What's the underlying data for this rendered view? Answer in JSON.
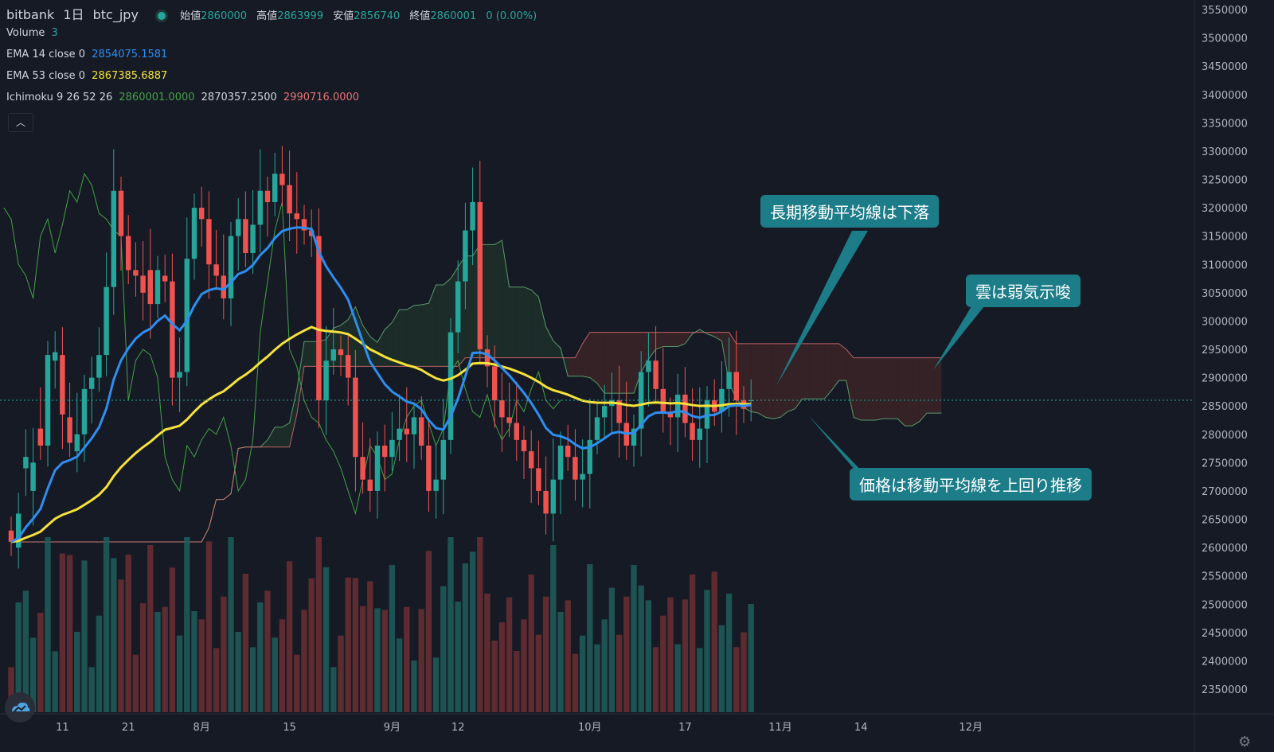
{
  "header": {
    "exchange": "bitbank",
    "interval": "1日",
    "symbol": "btc_jpy",
    "ohlc": [
      {
        "label": "始値",
        "value": "2860000"
      },
      {
        "label": "高値",
        "value": "2863999"
      },
      {
        "label": "安値",
        "value": "2856740"
      },
      {
        "label": "終値",
        "value": "2860001"
      }
    ],
    "change": "0 (0.00%)"
  },
  "indicators": {
    "volume": {
      "label": "Volume",
      "value": "3"
    },
    "ema14": {
      "label": "EMA 14 close 0",
      "value": "2854075.1581"
    },
    "ema53": {
      "label": "EMA 53 close 0",
      "value": "2867385.6887"
    },
    "ichimoku": {
      "label": "Ichimoku 9 26 52 26",
      "v1": "2860001.0000",
      "v2": "2870357.2500",
      "v3": "2990716.0000"
    }
  },
  "collapse_icon": "chevron-up-icon",
  "annotations": {
    "a1": "長期移動平均線は下落",
    "a2": "雲は弱気示唆",
    "a3": "価格は移動平均線を上回り推移"
  },
  "colors": {
    "background": "#161a25",
    "up": "#26a69a",
    "down": "#ef5350",
    "ema14": "#2e8ef0",
    "ema53": "#f5e23a",
    "callout": "#1c7d89",
    "cloud_bear": "#3a2428",
    "cloud_bull": "#1d3029"
  },
  "chart_data": {
    "type": "candlestick",
    "price_axis": {
      "min": 2320000,
      "max": 3560000,
      "ticks": [
        3550000,
        3500000,
        3450000,
        3400000,
        3350000,
        3300000,
        3250000,
        3200000,
        3150000,
        3100000,
        3050000,
        3000000,
        2950000,
        2900000,
        2850000,
        2800000,
        2750000,
        2700000,
        2650000,
        2600000,
        2550000,
        2500000,
        2450000,
        2400000,
        2350000
      ]
    },
    "tick_labels": [
      "3550000",
      "3500000",
      "3450000",
      "3400000",
      "3350000",
      "3300000",
      "3250000",
      "3200000",
      "3150000",
      "3100000",
      "3050000",
      "3000000",
      "2950000",
      "2900000",
      "2850000",
      "2800000",
      "2750000",
      "2700000",
      "2650000",
      "2600000",
      "2550000",
      "2500000",
      "2450000",
      "2400000",
      "2350000"
    ],
    "last_price": 2860001,
    "last_price_label": "2860001",
    "time_axis": [
      "11",
      "21",
      "8月",
      "15",
      "9月",
      "12",
      "10月",
      "17",
      "11月",
      "14",
      "12月"
    ],
    "time_axis_index": [
      7,
      16,
      26,
      38,
      52,
      61,
      79,
      92,
      105,
      116,
      131
    ],
    "bar_count": 139,
    "candles_close": [
      2610000,
      2660000,
      2760000,
      2750000,
      2780000,
      2940000,
      2945000,
      2835000,
      2785000,
      2800000,
      2880000,
      2900000,
      2940000,
      3060000,
      3230000,
      3150000,
      3090000,
      3080000,
      3050000,
      3030000,
      3090000,
      3070000,
      2900000,
      2910000,
      3110000,
      3200000,
      3180000,
      3100000,
      3080000,
      3040000,
      3150000,
      3180000,
      3120000,
      3170000,
      3230000,
      3210000,
      3260000,
      3240000,
      3190000,
      3180000,
      3160000,
      3150000,
      2860000,
      2930000,
      2950000,
      2940000,
      2900000,
      2760000,
      2720000,
      2700000,
      2780000,
      2760000,
      2790000,
      2810000,
      2800000,
      2830000,
      2780000,
      2700000,
      2720000,
      2790000,
      2980000,
      3070000,
      3160000,
      3210000,
      2950000,
      2920000,
      2860000,
      2830000,
      2820000,
      2790000,
      2770000,
      2740000,
      2700000,
      2660000,
      2720000,
      2780000,
      2760000,
      2720000,
      2730000,
      2790000,
      2830000,
      2850000,
      2860000,
      2820000,
      2780000,
      2810000,
      2910000,
      2930000,
      2880000,
      2840000,
      2830000,
      2870000,
      2820000,
      2790000,
      2810000,
      2860000,
      2840000,
      2880000,
      2910000,
      2860000,
      2845000,
      2860001
    ],
    "candles_open": [
      2630000,
      2600000,
      2740000,
      2700000,
      2810000,
      2780000,
      2930000,
      2940000,
      2830000,
      2770000,
      2800000,
      2880000,
      2900000,
      2940000,
      3060000,
      3230000,
      3150000,
      3090000,
      3080000,
      3090000,
      3030000,
      3080000,
      3070000,
      2900000,
      2910000,
      3110000,
      3200000,
      3180000,
      3100000,
      3080000,
      3040000,
      3150000,
      3180000,
      3120000,
      3170000,
      3230000,
      3210000,
      3260000,
      3240000,
      3190000,
      3180000,
      3160000,
      3150000,
      2860000,
      2930000,
      2950000,
      2940000,
      2900000,
      2760000,
      2720000,
      2700000,
      2780000,
      2760000,
      2790000,
      2810000,
      2800000,
      2830000,
      2780000,
      2700000,
      2720000,
      2790000,
      2980000,
      3070000,
      3160000,
      3210000,
      2950000,
      2920000,
      2860000,
      2830000,
      2820000,
      2790000,
      2770000,
      2740000,
      2700000,
      2660000,
      2720000,
      2780000,
      2760000,
      2720000,
      2730000,
      2790000,
      2830000,
      2850000,
      2860000,
      2820000,
      2780000,
      2810000,
      2910000,
      2930000,
      2880000,
      2840000,
      2830000,
      2870000,
      2820000,
      2790000,
      2810000,
      2860000,
      2840000,
      2880000,
      2910000,
      2860000,
      2860000
    ],
    "series": [
      {
        "name": "EMA 14 close 0",
        "value": 2854075.1581
      },
      {
        "name": "EMA 53 close 0",
        "value": 2867385.6887
      },
      {
        "name": "Ichimoku 9 26 52 26",
        "values": [
          2860001.0,
          2870357.25,
          2990716.0
        ]
      }
    ]
  }
}
